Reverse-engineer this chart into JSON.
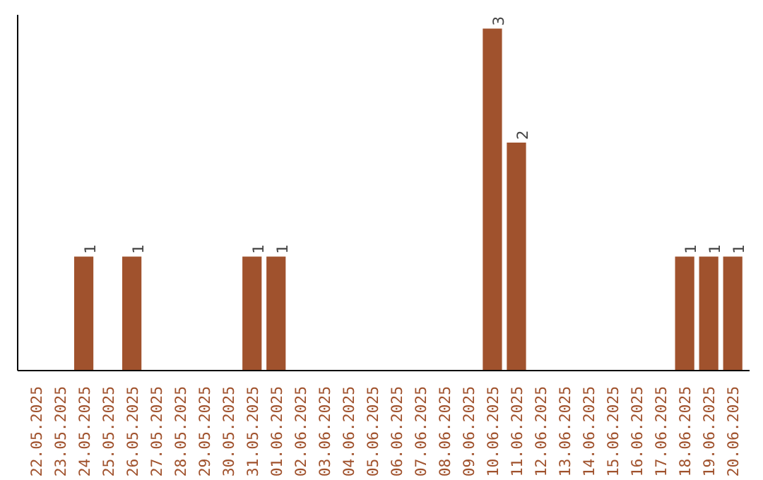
{
  "chart_data": {
    "type": "bar",
    "categories": [
      "22.05.2025",
      "23.05.2025",
      "24.05.2025",
      "25.05.2025",
      "26.05.2025",
      "27.05.2025",
      "28.05.2025",
      "29.05.2025",
      "30.05.2025",
      "31.05.2025",
      "01.06.2025",
      "02.06.2025",
      "03.06.2025",
      "04.06.2025",
      "05.06.2025",
      "06.06.2025",
      "07.06.2025",
      "08.06.2025",
      "09.06.2025",
      "10.06.2025",
      "11.06.2025",
      "12.06.2025",
      "13.06.2025",
      "14.06.2025",
      "15.06.2025",
      "16.06.2025",
      "17.06.2025",
      "18.06.2025",
      "19.06.2025",
      "20.06.2025"
    ],
    "values": [
      0,
      0,
      1,
      0,
      1,
      0,
      0,
      0,
      0,
      1,
      1,
      0,
      0,
      0,
      0,
      0,
      0,
      0,
      0,
      3,
      2,
      0,
      0,
      0,
      0,
      0,
      0,
      1,
      1,
      1
    ],
    "value_labels": [
      null,
      null,
      "1",
      null,
      "1",
      null,
      null,
      null,
      null,
      "1",
      "1",
      null,
      null,
      null,
      null,
      null,
      null,
      null,
      null,
      "3",
      "2",
      null,
      null,
      null,
      null,
      null,
      null,
      "1",
      "1",
      "1"
    ],
    "color": "#a0522d",
    "tick_labels": "x"
  }
}
